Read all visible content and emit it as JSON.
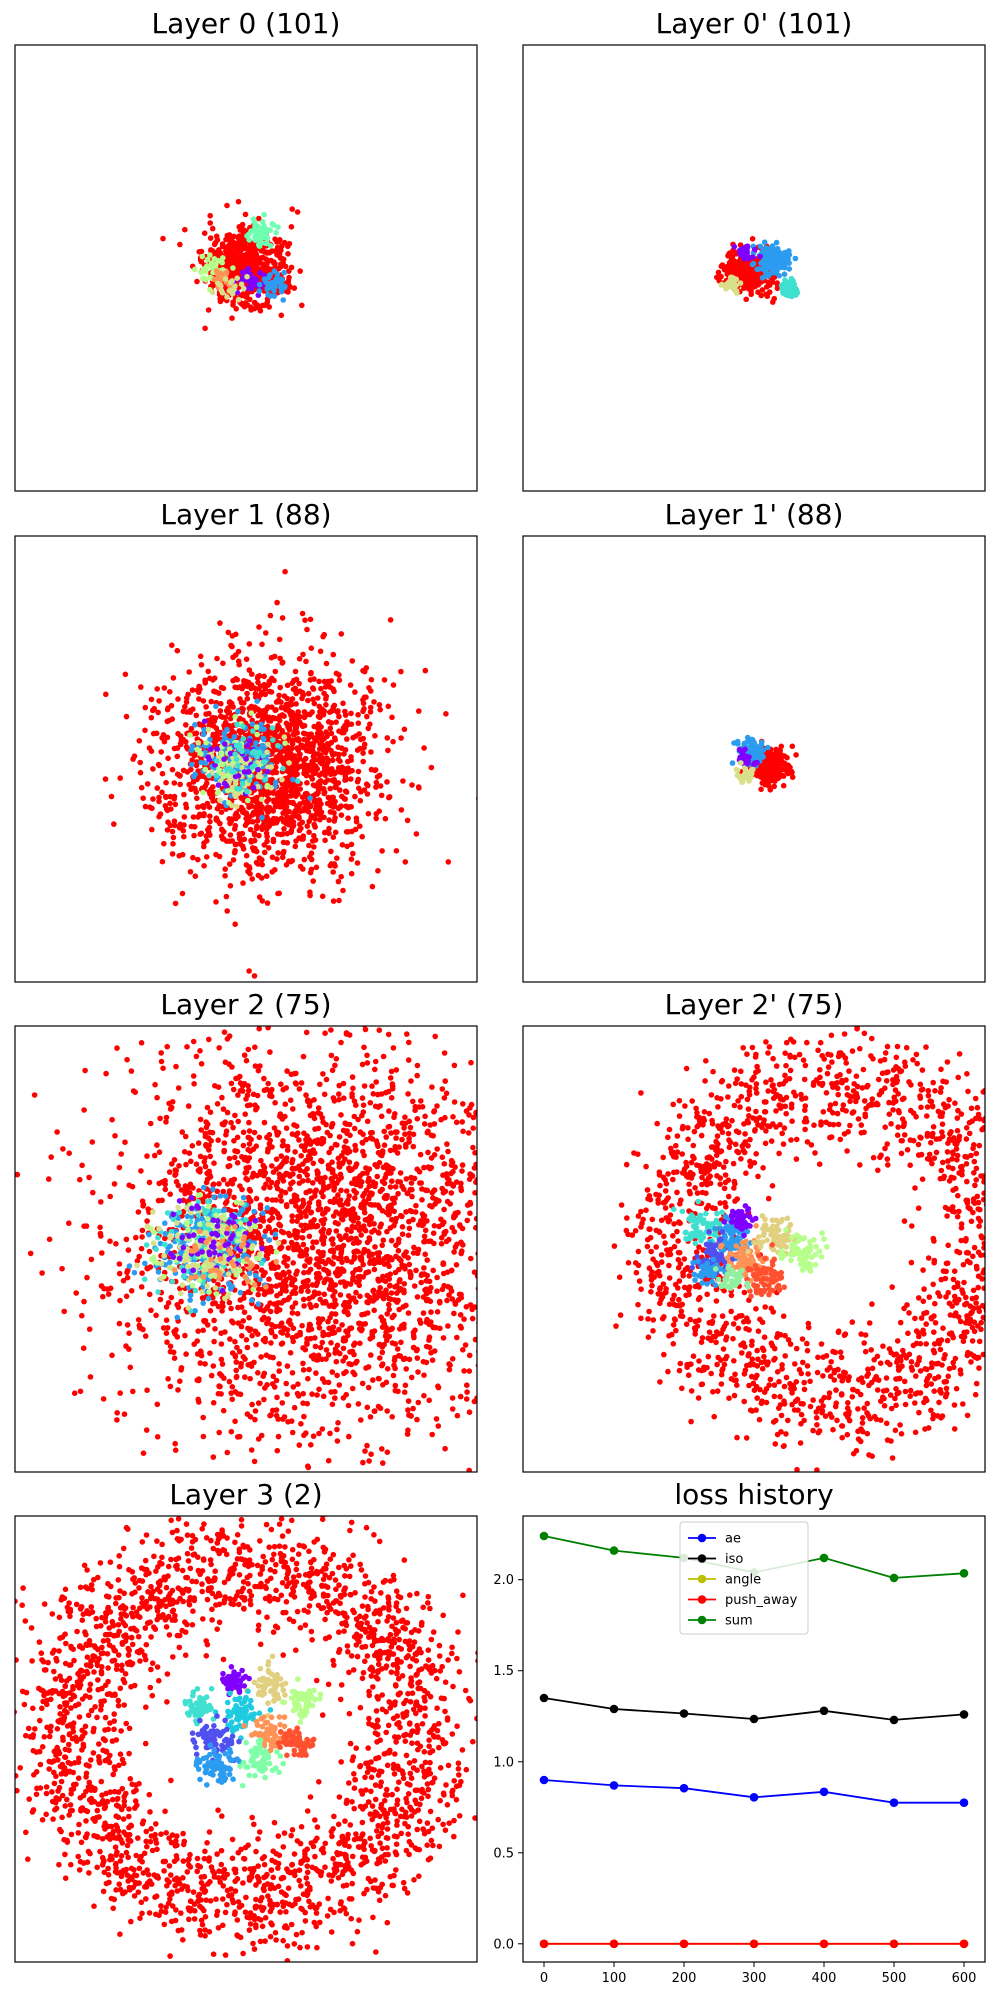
{
  "figure": {
    "background": "#ffffff"
  },
  "chart_data": [
    {
      "type": "scatter",
      "title": "Layer 0 (101)",
      "axes_visible": false,
      "colormap": "rainbow",
      "outlier_color": "#ff0000",
      "xlim": [
        -10,
        10
      ],
      "ylim": [
        -10,
        10
      ],
      "clusters": [
        {
          "center": [
            0.0,
            0.0
          ],
          "spread": 0.9,
          "color": "#ff0000",
          "count": 600
        },
        {
          "center": [
            0.6,
            1.6
          ],
          "spread": 0.25,
          "color": "#6effb0",
          "count": 60
        },
        {
          "center": [
            -1.5,
            -0.1
          ],
          "spread": 0.3,
          "color": "#b5ff8a",
          "count": 40
        },
        {
          "center": [
            0.2,
            -0.6
          ],
          "spread": 0.25,
          "color": "#8000ff",
          "count": 40
        },
        {
          "center": [
            1.2,
            -0.8
          ],
          "spread": 0.3,
          "color": "#2b9cf0",
          "count": 40
        },
        {
          "center": [
            -1.1,
            -0.4
          ],
          "spread": 0.25,
          "color": "#ff9255",
          "count": 20
        },
        {
          "center": [
            -0.7,
            -0.9
          ],
          "spread": 0.3,
          "color": "#d8e08a",
          "count": 20
        }
      ]
    },
    {
      "type": "scatter",
      "title": "Layer 0' (101)",
      "axes_visible": false,
      "colormap": "rainbow",
      "outlier_color": "#ff0000",
      "xlim": [
        -10,
        10
      ],
      "ylim": [
        -10,
        10
      ],
      "clusters": [
        {
          "center": [
            -0.2,
            -0.1
          ],
          "spread": 0.5,
          "color": "#ff0000",
          "count": 320
        },
        {
          "center": [
            0.8,
            0.4
          ],
          "spread": 0.35,
          "color": "#2b9cf0",
          "count": 140
        },
        {
          "center": [
            1.5,
            -0.9
          ],
          "spread": 0.2,
          "color": "#40e0d0",
          "count": 40
        },
        {
          "center": [
            -0.4,
            0.7
          ],
          "spread": 0.2,
          "color": "#8000ff",
          "count": 30
        },
        {
          "center": [
            -1.0,
            -0.7
          ],
          "spread": 0.2,
          "color": "#d8e08a",
          "count": 30
        }
      ]
    },
    {
      "type": "scatter",
      "title": "Layer 1 (88)",
      "axes_visible": false,
      "colormap": "rainbow",
      "outlier_color": "#ff0000",
      "xlim": [
        -10,
        10
      ],
      "ylim": [
        -10,
        10
      ],
      "clusters": [
        {
          "center": [
            1.0,
            -0.3
          ],
          "spread": 2.3,
          "color": "#ff0000",
          "count": 1800
        },
        {
          "center": [
            -0.3,
            -0.1
          ],
          "spread": 0.9,
          "color": "#2b9cf0",
          "count": 140
        },
        {
          "center": [
            -0.3,
            -0.2
          ],
          "spread": 0.9,
          "color": "#b5ff8a",
          "count": 60
        },
        {
          "center": [
            -0.2,
            -0.3
          ],
          "spread": 0.8,
          "color": "#d8e08a",
          "count": 60
        },
        {
          "center": [
            -0.4,
            0.0
          ],
          "spread": 0.8,
          "color": "#8000ff",
          "count": 30
        },
        {
          "center": [
            -0.3,
            0.1
          ],
          "spread": 0.9,
          "color": "#40e0d0",
          "count": 40
        }
      ]
    },
    {
      "type": "scatter",
      "title": "Layer 1' (88)",
      "axes_visible": false,
      "colormap": "rainbow",
      "outlier_color": "#ff0000",
      "xlim": [
        -10,
        10
      ],
      "ylim": [
        -10,
        10
      ],
      "clusters": [
        {
          "center": [
            0.7,
            -0.4
          ],
          "spread": 0.4,
          "color": "#ff0000",
          "count": 220
        },
        {
          "center": [
            -0.1,
            0.3
          ],
          "spread": 0.3,
          "color": "#2b9cf0",
          "count": 80
        },
        {
          "center": [
            -0.3,
            0.0
          ],
          "spread": 0.2,
          "color": "#8000ff",
          "count": 30
        },
        {
          "center": [
            -0.4,
            -0.6
          ],
          "spread": 0.2,
          "color": "#d8e08a",
          "count": 25
        }
      ]
    },
    {
      "type": "scatter",
      "title": "Layer 2 (75)",
      "axes_visible": false,
      "colormap": "rainbow",
      "outlier_color": "#ff0000",
      "xlim": [
        -10,
        10
      ],
      "ylim": [
        -10,
        10
      ],
      "clusters": [
        {
          "center": [
            3.0,
            0.5
          ],
          "spread": 4.5,
          "color": "#ff0000",
          "count": 2600
        },
        {
          "center": [
            -1.8,
            0.0
          ],
          "spread": 1.1,
          "color": "#2b9cf0",
          "count": 240
        },
        {
          "center": [
            -1.6,
            0.3
          ],
          "spread": 1.0,
          "color": "#40e0d0",
          "count": 120
        },
        {
          "center": [
            -1.4,
            0.1
          ],
          "spread": 1.0,
          "color": "#b5ff8a",
          "count": 100
        },
        {
          "center": [
            -1.7,
            -0.1
          ],
          "spread": 1.0,
          "color": "#d8e08a",
          "count": 100
        },
        {
          "center": [
            -1.5,
            0.2
          ],
          "spread": 0.9,
          "color": "#8000ff",
          "count": 60
        },
        {
          "center": [
            -1.2,
            -0.4
          ],
          "spread": 0.9,
          "color": "#ff9255",
          "count": 40
        }
      ]
    },
    {
      "type": "scatter",
      "title": "Layer 2' (75)",
      "axes_visible": false,
      "colormap": "rainbow",
      "outlier_color": "#ff0000",
      "xlim": [
        -10,
        10
      ],
      "ylim": [
        -10,
        10
      ],
      "ring": {
        "center": [
          3.5,
          0.5
        ],
        "radius": 7.0,
        "width": 1.3,
        "color": "#ff0000",
        "count": 1700
      },
      "clusters": [
        {
          "center": [
            -2.2,
            0.9
          ],
          "spread": 0.45,
          "color": "#40e0d0",
          "count": 70
        },
        {
          "center": [
            -0.9,
            0.4
          ],
          "spread": 0.4,
          "color": "#2b9cf0",
          "count": 70
        },
        {
          "center": [
            -0.6,
            1.3
          ],
          "spread": 0.3,
          "color": "#8000ff",
          "count": 40
        },
        {
          "center": [
            -1.8,
            -0.4
          ],
          "spread": 0.4,
          "color": "#5050f0",
          "count": 60
        },
        {
          "center": [
            -2.0,
            -1.0
          ],
          "spread": 0.3,
          "color": "#2b9cf0",
          "count": 40
        },
        {
          "center": [
            -0.3,
            -0.5
          ],
          "spread": 0.45,
          "color": "#ff9255",
          "count": 70
        },
        {
          "center": [
            0.9,
            0.7
          ],
          "spread": 0.45,
          "color": "#e0d080",
          "count": 70
        },
        {
          "center": [
            2.1,
            -0.1
          ],
          "spread": 0.4,
          "color": "#b5ff8a",
          "count": 60
        },
        {
          "center": [
            0.4,
            -1.3
          ],
          "spread": 0.45,
          "color": "#ff5030",
          "count": 70
        },
        {
          "center": [
            -1.0,
            -1.3
          ],
          "spread": 0.3,
          "color": "#90f0a0",
          "count": 40
        }
      ]
    },
    {
      "type": "scatter",
      "title": "Layer 3 (2)",
      "axes_visible": false,
      "colormap": "rainbow",
      "outlier_color": "#ff0000",
      "xlim": [
        -10,
        10
      ],
      "ylim": [
        -10,
        10
      ],
      "ring": {
        "center": [
          0.0,
          0.3
        ],
        "radius": 7.5,
        "width": 1.3,
        "color": "#ff0000",
        "count": 2200
      },
      "clusters": [
        {
          "center": [
            -0.5,
            2.6
          ],
          "spread": 0.3,
          "color": "#8000ff",
          "count": 50
        },
        {
          "center": [
            1.0,
            2.4
          ],
          "spread": 0.35,
          "color": "#e0d080",
          "count": 60
        },
        {
          "center": [
            2.4,
            1.7
          ],
          "spread": 0.35,
          "color": "#b5ff8a",
          "count": 60
        },
        {
          "center": [
            -2.0,
            1.5
          ],
          "spread": 0.35,
          "color": "#40e0d0",
          "count": 60
        },
        {
          "center": [
            -0.2,
            1.2
          ],
          "spread": 0.4,
          "color": "#1ecbe0",
          "count": 70
        },
        {
          "center": [
            1.0,
            0.2
          ],
          "spread": 0.4,
          "color": "#ff9255",
          "count": 60
        },
        {
          "center": [
            2.2,
            -0.1
          ],
          "spread": 0.35,
          "color": "#ff5030",
          "count": 60
        },
        {
          "center": [
            -1.4,
            0.0
          ],
          "spread": 0.4,
          "color": "#5050f0",
          "count": 70
        },
        {
          "center": [
            -1.2,
            -1.3
          ],
          "spread": 0.4,
          "color": "#2b9cf0",
          "count": 70
        },
        {
          "center": [
            0.6,
            -1.0
          ],
          "spread": 0.4,
          "color": "#80ffa8",
          "count": 60
        }
      ]
    },
    {
      "type": "line",
      "title": "loss history",
      "legend_placement": "upper-center",
      "x": [
        0,
        100,
        200,
        300,
        400,
        500,
        600
      ],
      "xlim": [
        -30,
        630
      ],
      "ylim": [
        -0.1,
        2.35
      ],
      "xticks": [
        0,
        100,
        200,
        300,
        400,
        500,
        600
      ],
      "yticks": [
        0.0,
        0.5,
        1.0,
        1.5,
        2.0
      ],
      "xtick_labels": [
        "0",
        "100",
        "200",
        "300",
        "400",
        "500",
        "600"
      ],
      "ytick_labels": [
        "0.0",
        "0.5",
        "1.0",
        "1.5",
        "2.0"
      ],
      "series": [
        {
          "name": "ae",
          "color": "#0000ff",
          "values": [
            0.9,
            0.87,
            0.855,
            0.805,
            0.835,
            0.775,
            0.775
          ]
        },
        {
          "name": "iso",
          "color": "#000000",
          "values": [
            1.35,
            1.29,
            1.265,
            1.235,
            1.28,
            1.23,
            1.26
          ]
        },
        {
          "name": "angle",
          "color": "#bfbf00",
          "values": [
            0.0,
            0.0,
            0.0,
            0.0,
            0.0,
            0.0,
            0.0
          ]
        },
        {
          "name": "push_away",
          "color": "#ff0000",
          "values": [
            0.0,
            0.0,
            0.0,
            0.0,
            0.0,
            0.0,
            0.0
          ]
        },
        {
          "name": "sum",
          "color": "#008000",
          "values": [
            2.24,
            2.16,
            2.12,
            2.04,
            2.12,
            2.01,
            2.035
          ]
        }
      ]
    }
  ]
}
